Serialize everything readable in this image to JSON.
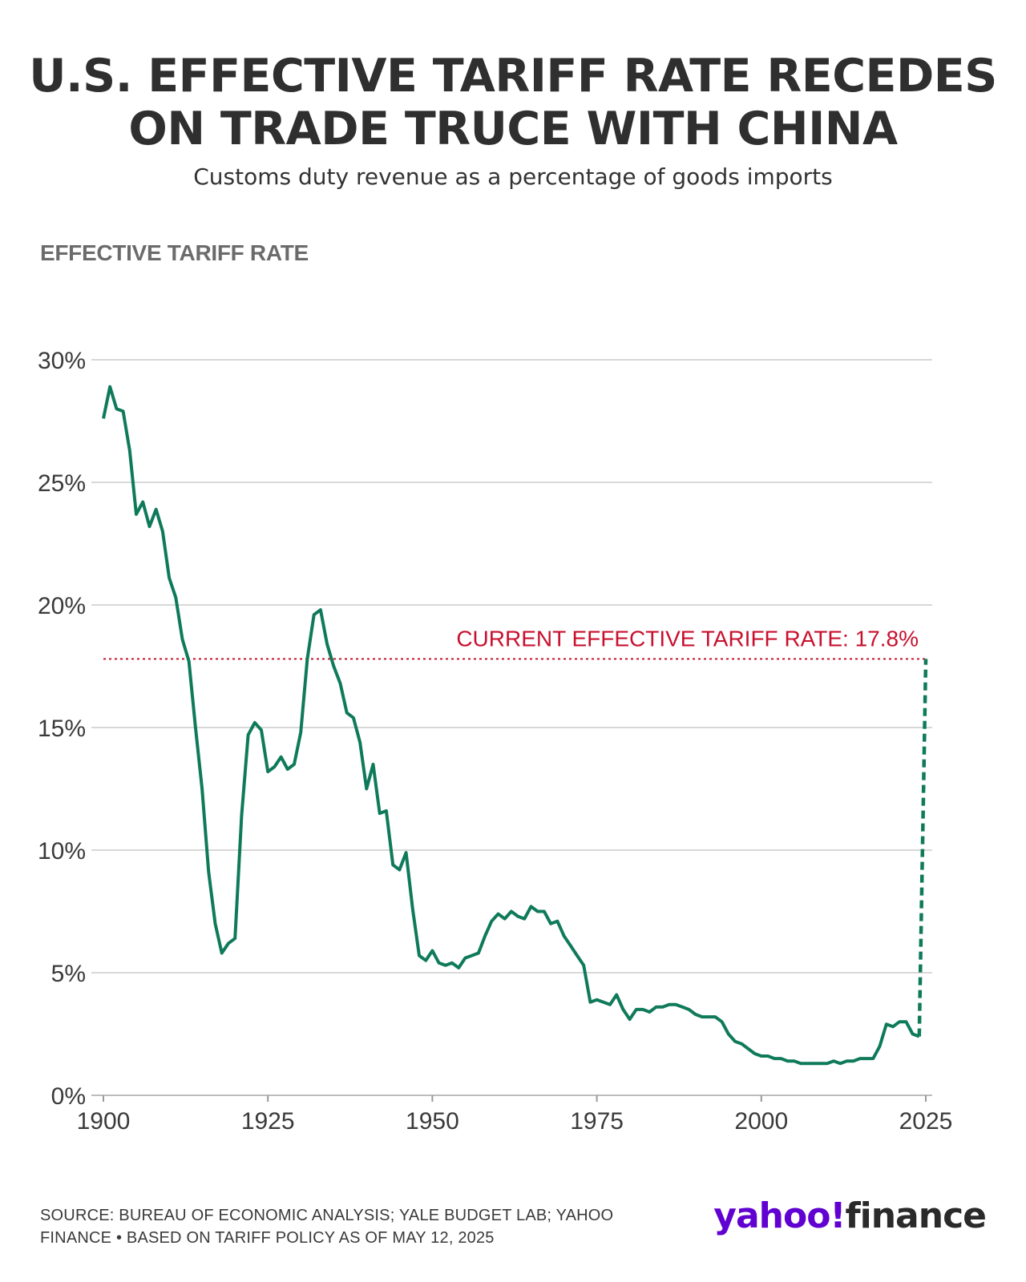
{
  "header": {
    "title_line1": "U.S. EFFECTIVE TARIFF RATE RECEDES",
    "title_line2": "ON TRADE TRUCE WITH CHINA",
    "subtitle": "Customs duty revenue as a percentage of goods imports",
    "axis_heading": "EFFECTIVE TARIFF RATE"
  },
  "footer": {
    "source_line1": "SOURCE: BUREAU OF ECONOMIC ANALYSIS; YALE BUDGET LAB; YAHOO",
    "source_line2": "FINANCE • BASED ON TARIFF POLICY AS OF MAY 12, 2025",
    "logo_brand": "yahoo!",
    "logo_product": "finance"
  },
  "colors": {
    "line": "#0f7a5a",
    "reference": "#c8102e",
    "grid": "#d8d8d8",
    "brand": "#6001d2"
  },
  "chart_data": {
    "type": "line",
    "title": "U.S. EFFECTIVE TARIFF RATE RECEDES ON TRADE TRUCE WITH CHINA",
    "subtitle": "Customs duty revenue as a percentage of goods imports",
    "ylabel": "EFFECTIVE TARIFF RATE",
    "xlabel": "",
    "xlim": [
      1900,
      2025
    ],
    "ylim": [
      0,
      30
    ],
    "x_ticks": [
      1900,
      1925,
      1950,
      1975,
      2000,
      2025
    ],
    "x_tick_labels": [
      "1900",
      "1925",
      "1950",
      "1975",
      "2000",
      "2025"
    ],
    "y_ticks": [
      0,
      5,
      10,
      15,
      20,
      25,
      30
    ],
    "y_tick_labels": [
      "0%",
      "5%",
      "10%",
      "15%",
      "20%",
      "25%",
      "30%"
    ],
    "grid": "horizontal",
    "series": [
      {
        "style": "solid",
        "x": [
          1900,
          1901,
          1902,
          1903,
          1904,
          1905,
          1906,
          1907,
          1908,
          1909,
          1910,
          1911,
          1912,
          1913,
          1914,
          1915,
          1916,
          1917,
          1918,
          1919,
          1920,
          1921,
          1922,
          1923,
          1924,
          1925,
          1926,
          1927,
          1928,
          1929,
          1930,
          1931,
          1932,
          1933,
          1934,
          1935,
          1936,
          1937,
          1938,
          1939,
          1940,
          1941,
          1942,
          1943,
          1944,
          1945,
          1946,
          1947,
          1948,
          1949,
          1950,
          1951,
          1952,
          1953,
          1954,
          1955,
          1956,
          1957,
          1958,
          1959,
          1960,
          1961,
          1962,
          1963,
          1964,
          1965,
          1966,
          1967,
          1968,
          1969,
          1970,
          1971,
          1972,
          1973,
          1974,
          1975,
          1976,
          1977,
          1978,
          1979,
          1980,
          1981,
          1982,
          1983,
          1984,
          1985,
          1986,
          1987,
          1988,
          1989,
          1990,
          1991,
          1992,
          1993,
          1994,
          1995,
          1996,
          1997,
          1998,
          1999,
          2000,
          2001,
          2002,
          2003,
          2004,
          2005,
          2006,
          2007,
          2008,
          2009,
          2010,
          2011,
          2012,
          2013,
          2014,
          2015,
          2016,
          2017,
          2018,
          2019,
          2020,
          2021,
          2022,
          2023,
          2024
        ],
        "y": [
          27.6,
          28.9,
          28.0,
          27.9,
          26.3,
          23.7,
          24.2,
          23.2,
          23.9,
          23.0,
          21.1,
          20.3,
          18.6,
          17.7,
          15.0,
          12.5,
          9.1,
          7.0,
          5.8,
          6.2,
          6.4,
          11.4,
          14.7,
          15.2,
          14.9,
          13.2,
          13.4,
          13.8,
          13.3,
          13.5,
          14.8,
          17.8,
          19.6,
          19.8,
          18.4,
          17.5,
          16.8,
          15.6,
          15.4,
          14.4,
          12.5,
          13.5,
          11.5,
          11.6,
          9.4,
          9.2,
          9.9,
          7.6,
          5.7,
          5.5,
          5.9,
          5.4,
          5.3,
          5.4,
          5.2,
          5.6,
          5.7,
          5.8,
          6.5,
          7.1,
          7.4,
          7.2,
          7.5,
          7.3,
          7.2,
          7.7,
          7.5,
          7.5,
          7.0,
          7.1,
          6.5,
          6.1,
          5.7,
          5.3,
          3.8,
          3.9,
          3.8,
          3.7,
          4.1,
          3.5,
          3.1,
          3.5,
          3.5,
          3.4,
          3.6,
          3.6,
          3.7,
          3.7,
          3.6,
          3.5,
          3.3,
          3.2,
          3.2,
          3.2,
          3.0,
          2.5,
          2.2,
          2.1,
          1.9,
          1.7,
          1.6,
          1.6,
          1.5,
          1.5,
          1.4,
          1.4,
          1.3,
          1.3,
          1.3,
          1.3,
          1.3,
          1.4,
          1.3,
          1.4,
          1.4,
          1.5,
          1.5,
          1.5,
          2.0,
          2.9,
          2.8,
          3.0,
          3.0,
          2.5,
          2.4
        ]
      },
      {
        "style": "dashed",
        "x": [
          2024,
          2025
        ],
        "y": [
          2.4,
          17.8
        ]
      }
    ],
    "annotations": [
      {
        "type": "hline",
        "y": 17.8,
        "text": "CURRENT EFFECTIVE TARIFF RATE: 17.8%"
      }
    ]
  }
}
